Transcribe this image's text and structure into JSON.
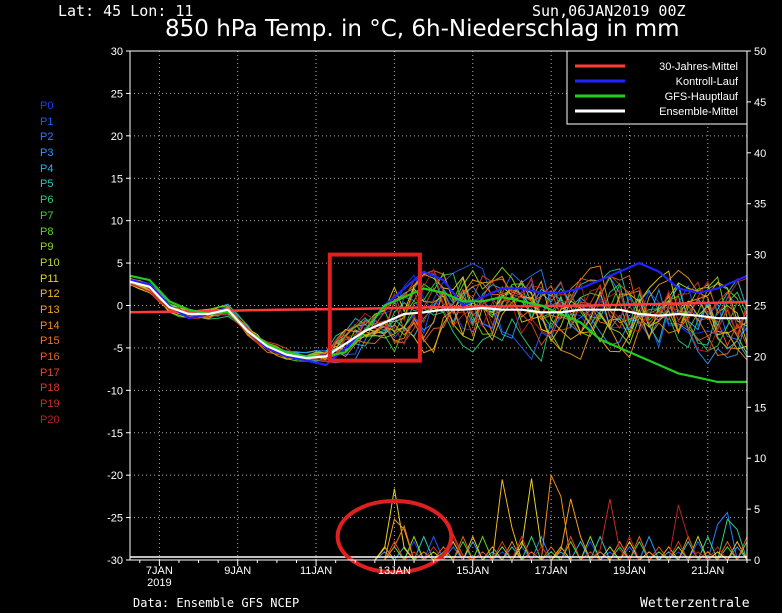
{
  "header": {
    "latlon": "Lat: 45 Lon: 11",
    "date": "Sun,06JAN2019 00Z",
    "title": "850 hPa Temp. in °C, 6h-Niederschlag in mm"
  },
  "footer": {
    "source": "Data: Ensemble GFS NCEP",
    "brand": "Wetterzentrale"
  },
  "members": [
    {
      "label": "P0",
      "color": "#1a3cff"
    },
    {
      "label": "P1",
      "color": "#1f5cff"
    },
    {
      "label": "P2",
      "color": "#2a7bff"
    },
    {
      "label": "P3",
      "color": "#2f96ff"
    },
    {
      "label": "P4",
      "color": "#2db2e6"
    },
    {
      "label": "P5",
      "color": "#2cc7b8"
    },
    {
      "label": "P6",
      "color": "#2cd07a"
    },
    {
      "label": "P7",
      "color": "#33d43a"
    },
    {
      "label": "P8",
      "color": "#5fd62a"
    },
    {
      "label": "P9",
      "color": "#8ed823"
    },
    {
      "label": "P10",
      "color": "#bcd81e"
    },
    {
      "label": "P11",
      "color": "#e8d31a"
    },
    {
      "label": "P12",
      "color": "#f2b81a"
    },
    {
      "label": "P13",
      "color": "#f2a01a"
    },
    {
      "label": "P14",
      "color": "#f08a1c"
    },
    {
      "label": "P15",
      "color": "#ec741e"
    },
    {
      "label": "P16",
      "color": "#e55f20"
    },
    {
      "label": "P17",
      "color": "#dd4c22"
    },
    {
      "label": "P18",
      "color": "#d23a23"
    },
    {
      "label": "P19",
      "color": "#c62b25"
    },
    {
      "label": "P20",
      "color": "#b82026"
    }
  ],
  "chart_data": {
    "type": "line",
    "y_left_range": [
      -30,
      30
    ],
    "y_right_range": [
      0,
      50
    ],
    "y_left_ticks": [
      30,
      25,
      20,
      15,
      10,
      5,
      0,
      -5,
      -10,
      -15,
      -20,
      -25,
      -30
    ],
    "y_right_ticks": [
      50,
      45,
      40,
      35,
      30,
      25,
      20,
      15,
      10,
      5,
      0
    ],
    "x_range_days": [
      6.25,
      22.0
    ],
    "x_ticks": [
      {
        "day": 7,
        "label": "7JAN",
        "sub": "2019"
      },
      {
        "day": 9,
        "label": "9JAN"
      },
      {
        "day": 11,
        "label": "11JAN"
      },
      {
        "day": 13,
        "label": "13JAN"
      },
      {
        "day": 15,
        "label": "15JAN"
      },
      {
        "day": 17,
        "label": "17JAN"
      },
      {
        "day": 19,
        "label": "19JAN"
      },
      {
        "day": 21,
        "label": "21JAN"
      }
    ],
    "grid": true,
    "legend_position": "top-right",
    "legend": [
      {
        "name": "30-Jahres-Mittel",
        "color": "#ff3b3b"
      },
      {
        "name": "Kontroll-Lauf",
        "color": "#2222ff"
      },
      {
        "name": "GFS-Hauptlauf",
        "color": "#22cc22"
      },
      {
        "name": "Ensemble-Mittel",
        "color": "#ffffff"
      }
    ],
    "series": [
      {
        "role": "climate",
        "color": "#ff3b3b",
        "x": [
          6.25,
          8,
          10,
          12,
          14,
          16,
          18,
          20,
          22
        ],
        "y": [
          -0.8,
          -0.7,
          -0.5,
          -0.4,
          -0.2,
          -0.1,
          0.0,
          0.2,
          0.4
        ]
      },
      {
        "role": "control",
        "color": "#2222ff",
        "x": [
          6.25,
          6.75,
          7.25,
          7.75,
          8.25,
          8.75,
          9.25,
          9.75,
          10.25,
          10.75,
          11.25,
          11.75,
          12.25,
          12.75,
          13.25,
          13.75,
          14.25,
          14.75,
          15.25,
          15.75,
          16.25,
          16.75,
          17.25,
          17.75,
          18.25,
          18.75,
          19.25,
          19.75,
          20.25,
          20.75,
          21.25,
          21.75,
          22.0
        ],
        "y": [
          3.0,
          2.5,
          0.0,
          -1.5,
          -1.0,
          -0.5,
          -3.0,
          -5.0,
          -6.0,
          -6.5,
          -7.0,
          -5.0,
          -3.0,
          0.0,
          2.0,
          4.0,
          3.0,
          0.0,
          1.0,
          2.0,
          2.0,
          1.5,
          1.5,
          2.0,
          3.0,
          4.0,
          5.0,
          4.0,
          2.0,
          1.5,
          2.0,
          3.0,
          3.5
        ]
      },
      {
        "role": "operational",
        "color": "#22cc22",
        "x": [
          6.25,
          6.75,
          7.25,
          7.75,
          8.25,
          8.75,
          9.25,
          9.75,
          10.25,
          10.75,
          11.25,
          11.75,
          12.25,
          12.75,
          13.25,
          13.75,
          14.25,
          14.75,
          15.25,
          15.75,
          16.25,
          16.75,
          17.25,
          17.75,
          18.25,
          18.75,
          19.25,
          19.75,
          20.25,
          20.75,
          21.25,
          21.75,
          22.0
        ],
        "y": [
          3.5,
          3.0,
          0.5,
          -0.5,
          -1.0,
          -0.8,
          -3.0,
          -4.5,
          -5.5,
          -6.0,
          -6.0,
          -5.5,
          -3.0,
          0.0,
          1.0,
          2.0,
          1.5,
          0.5,
          0.5,
          1.0,
          0.5,
          0.0,
          -1.0,
          -2.0,
          -4.0,
          -5.0,
          -6.0,
          -7.0,
          -8.0,
          -8.5,
          -9.0,
          -9.0,
          -9.0
        ]
      },
      {
        "role": "mean",
        "color": "#ffffff",
        "x": [
          6.25,
          6.75,
          7.25,
          7.75,
          8.25,
          8.75,
          9.25,
          9.75,
          10.25,
          10.75,
          11.25,
          11.75,
          12.25,
          12.75,
          13.25,
          13.75,
          14.25,
          14.75,
          15.25,
          15.75,
          16.25,
          16.75,
          17.25,
          17.75,
          18.25,
          18.75,
          19.25,
          19.75,
          20.25,
          20.75,
          21.25,
          21.75,
          22.0
        ],
        "y": [
          2.8,
          2.2,
          -0.2,
          -1.0,
          -1.0,
          -0.5,
          -3.0,
          -4.8,
          -5.8,
          -6.2,
          -6.0,
          -4.5,
          -3.0,
          -2.0,
          -1.0,
          -0.8,
          -0.5,
          -0.5,
          -0.3,
          -0.5,
          -0.5,
          -0.8,
          -0.8,
          -0.5,
          -0.5,
          -0.5,
          -1.0,
          -1.2,
          -1.0,
          -1.2,
          -1.5,
          -1.5,
          -1.5
        ]
      }
    ],
    "precip_peaks": [
      {
        "x": 13.0,
        "y": 7.0,
        "color": "#e8d31a"
      },
      {
        "x": 13.1,
        "y": 6.0,
        "color": "#f2a01a"
      },
      {
        "x": 13.2,
        "y": 4.0,
        "color": "#ec741e"
      },
      {
        "x": 14.5,
        "y": 2.5,
        "color": "#dd4c22"
      },
      {
        "x": 15.8,
        "y": 9.5,
        "color": "#f2b81a"
      },
      {
        "x": 16.5,
        "y": 8.0,
        "color": "#e8d31a"
      },
      {
        "x": 17.1,
        "y": 12.5,
        "color": "#f08a1c"
      },
      {
        "x": 17.5,
        "y": 6.0,
        "color": "#f2a01a"
      },
      {
        "x": 18.5,
        "y": 6.0,
        "color": "#c62b25"
      },
      {
        "x": 19.5,
        "y": 5.0,
        "color": "#22cc22"
      },
      {
        "x": 20.3,
        "y": 6.5,
        "color": "#b82026"
      },
      {
        "x": 21.4,
        "y": 7.0,
        "color": "#2a7bff"
      },
      {
        "x": 21.6,
        "y": 6.0,
        "color": "#2cd07a"
      }
    ],
    "annotations": [
      {
        "shape": "rectangle",
        "x": [
          11.35,
          13.65
        ],
        "y": [
          -6.5,
          6.0
        ],
        "color": "#e02020"
      },
      {
        "shape": "ellipse",
        "cx": 13.0,
        "cy_precip": 2.3,
        "rx_days": 1.45,
        "ry_precip": 3.5,
        "color": "#e02020"
      }
    ]
  }
}
